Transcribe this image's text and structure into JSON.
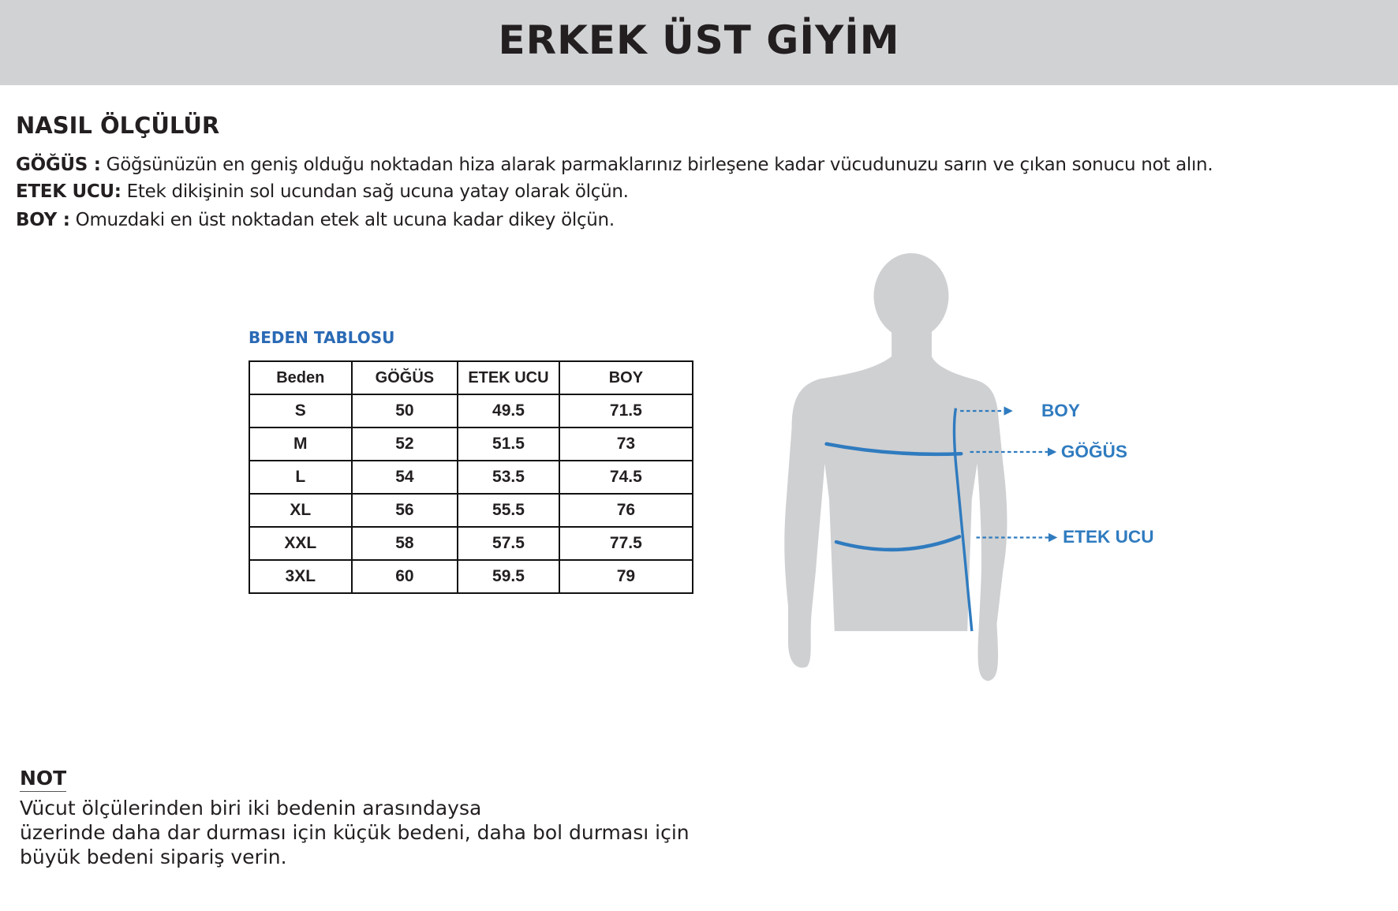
{
  "header": {
    "title": "ERKEK ÜST GİYİM",
    "background": "#d1d2d4"
  },
  "how_to": {
    "title": "NASIL ÖLÇÜLÜR",
    "items": [
      {
        "label": "GÖĞÜS :",
        "text": " Göğsünüzün en geniş olduğu noktadan hiza alarak parmaklarınız birleşene kadar vücudunuzu sarın ve çıkan sonucu not alın."
      },
      {
        "label": "ETEK UCU:",
        "text": " Etek dikişinin sol ucundan sağ ucuna yatay olarak ölçün."
      },
      {
        "label": "BOY :",
        "text": " Omuzdaki en üst noktadan etek alt ucuna kadar dikey ölçün."
      }
    ]
  },
  "size_table": {
    "title": "BEDEN TABLOSU",
    "title_color": "#2a6ab5",
    "columns": [
      "Beden",
      "GÖĞÜS",
      "ETEK UCU",
      "BOY"
    ],
    "rows": [
      [
        "S",
        "50",
        "49.5",
        "71.5"
      ],
      [
        "M",
        "52",
        "51.5",
        "73"
      ],
      [
        "L",
        "54",
        "53.5",
        "74.5"
      ],
      [
        "XL",
        "56",
        "55.5",
        "76"
      ],
      [
        "XXL",
        "58",
        "57.5",
        "77.5"
      ],
      [
        "3XL",
        "60",
        "59.5",
        "79"
      ]
    ]
  },
  "figure": {
    "labels": {
      "boy": "BOY",
      "gogus": "GÖĞÜS",
      "etek_ucu": "ETEK UCU"
    },
    "line_color": "#2f7bbf",
    "silhouette_color": "#cfd0d2"
  },
  "note": {
    "title": "NOT",
    "lines": [
      "Vücut ölçülerinden biri iki bedenin arasındaysa",
      "üzerinde daha dar durması için küçük bedeni, daha bol durması için",
      "büyük bedeni sipariş verin."
    ]
  }
}
